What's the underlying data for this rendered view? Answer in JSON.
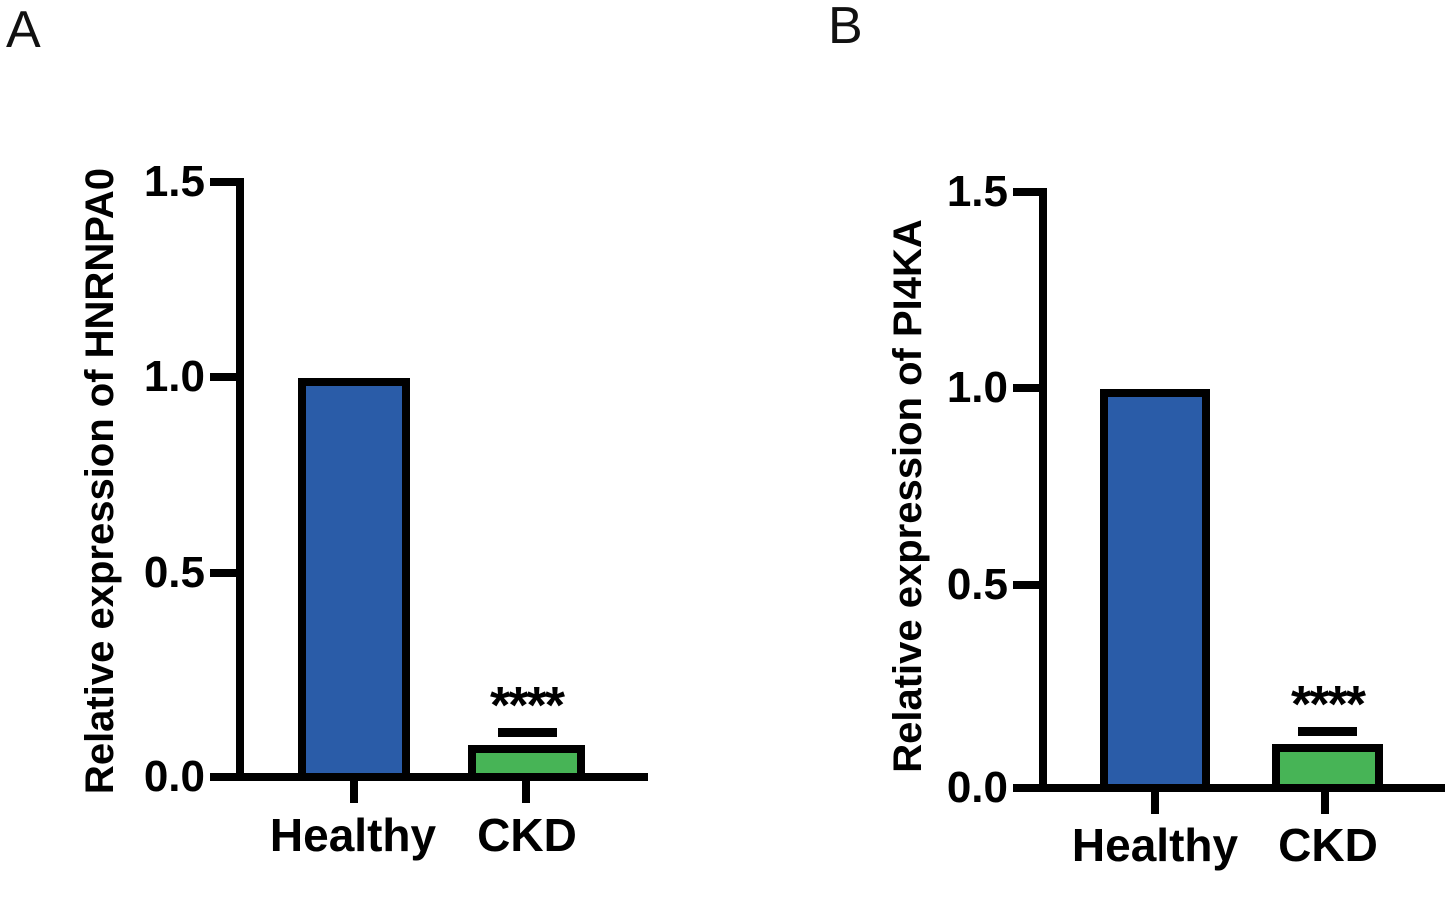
{
  "figure": {
    "panels": [
      {
        "label": "A"
      },
      {
        "label": "B"
      }
    ]
  },
  "chart_data": [
    {
      "type": "bar",
      "panel": "A",
      "title": "",
      "ylabel": "Relative expression of HNRNPA0",
      "xlabel": "",
      "categories": [
        "Healthy",
        "CKD"
      ],
      "values": [
        1.0,
        0.09
      ],
      "error_upper": [
        0,
        0.02
      ],
      "ylim": [
        0,
        1.5
      ],
      "yticks": [
        0.0,
        0.5,
        1.0,
        1.5
      ],
      "ytick_labels_top_to_bottom": [
        "1.5",
        "1.0",
        "0.5",
        "0.0"
      ],
      "significance_label": "****",
      "significance_on_category": "CKD",
      "bar_colors": [
        "#2A5CA8",
        "#47B456"
      ],
      "bar_edge_color": "#000000",
      "grid": false
    },
    {
      "type": "bar",
      "panel": "B",
      "title": "",
      "ylabel": "Relative expression of PI4KA",
      "xlabel": "",
      "categories": [
        "Healthy",
        "CKD"
      ],
      "values": [
        1.0,
        0.12
      ],
      "error_upper": [
        0,
        0.02
      ],
      "ylim": [
        0,
        1.5
      ],
      "yticks": [
        0.0,
        0.5,
        1.0,
        1.5
      ],
      "ytick_labels_top_to_bottom": [
        "1.5",
        "1.0",
        "0.5",
        "0.0"
      ],
      "significance_label": "****",
      "significance_on_category": "CKD",
      "bar_colors": [
        "#2A5CA8",
        "#47B456"
      ],
      "bar_edge_color": "#000000",
      "grid": false
    }
  ]
}
